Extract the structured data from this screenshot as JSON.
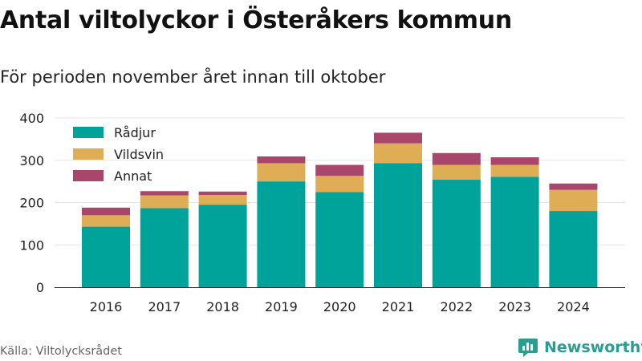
{
  "title": "Antal viltolyckor i Österåkers kommun",
  "subtitle": "För perioden november året innan till oktober",
  "source": "Källa: Viltolycksrådet",
  "brand": {
    "name": "Newsworthy",
    "icon": "newsworthy-logo-icon",
    "color": "#2a9d8f"
  },
  "colors": {
    "Rådjur": "#00a39a",
    "Vildsvin": "#e0ad57",
    "Annat": "#a9466b",
    "grid": "#e6e6e6",
    "axis": "#333333"
  },
  "chart_data": {
    "type": "bar",
    "stacked": true,
    "categories": [
      "2016",
      "2017",
      "2018",
      "2019",
      "2020",
      "2021",
      "2022",
      "2023",
      "2024"
    ],
    "series": [
      {
        "name": "Rådjur",
        "values": [
          143,
          187,
          195,
          250,
          225,
          293,
          254,
          261,
          180
        ]
      },
      {
        "name": "Vildsvin",
        "values": [
          27,
          30,
          23,
          43,
          38,
          47,
          35,
          28,
          50
        ]
      },
      {
        "name": "Annat",
        "values": [
          18,
          10,
          8,
          16,
          26,
          25,
          28,
          18,
          15
        ]
      }
    ],
    "ylim": [
      0,
      400
    ],
    "yticks": [
      0,
      100,
      200,
      300,
      400
    ],
    "grid": true,
    "legend": "top-left",
    "xlabel": "",
    "ylabel": ""
  }
}
